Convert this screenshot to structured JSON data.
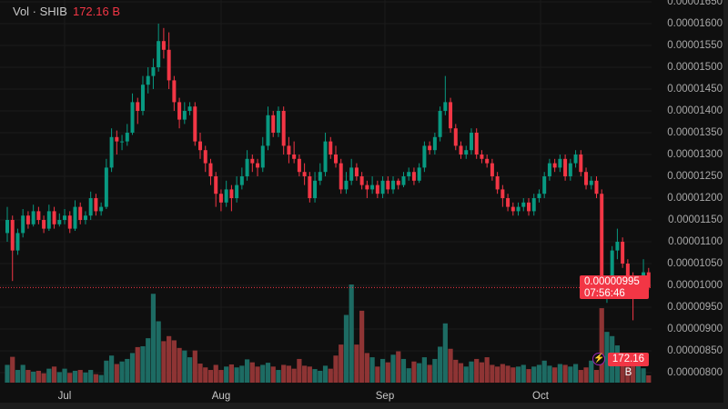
{
  "legend": {
    "label": "Vol · SHIB",
    "value": "172.16 B"
  },
  "price_axis": [
    "0.00001650",
    "0.00001600",
    "0.00001550",
    "0.00001500",
    "0.00001450",
    "0.00001400",
    "0.00001350",
    "0.00001300",
    "0.00001250",
    "0.00001200",
    "0.00001150",
    "0.00001100",
    "0.00001050",
    "0.00001000",
    "0.00000950",
    "0.00000900",
    "0.00000850",
    "0.00000800"
  ],
  "time_axis": [
    "Jul",
    "Aug",
    "Sep",
    "Oct"
  ],
  "current_price": {
    "price": "0.00000995",
    "countdown": "07:56:46"
  },
  "current_volume": "172.16 B",
  "colors": {
    "up": "#089981",
    "down": "#f23645",
    "vol_up": "#1d6b63",
    "vol_down": "#8e3434",
    "background": "#0f0f0f"
  },
  "icons": {
    "volume_tag": "lightning-icon"
  },
  "chart_data": {
    "type": "candlestick",
    "symbol": "SHIB",
    "volume_unit": "B",
    "price_range": [
      8e-06,
      1.65e-05
    ],
    "x_ticks": [
      "Jul",
      "Aug",
      "Sep",
      "Oct"
    ],
    "columns": [
      "open",
      "high",
      "low",
      "close",
      "volume"
    ],
    "candles": [
      [
        1.12e-05,
        1.18e-05,
        1.1e-05,
        1.15e-05,
        420
      ],
      [
        1.15e-05,
        1.16e-05,
        1.01e-05,
        1.08e-05,
        610
      ],
      [
        1.08e-05,
        1.13e-05,
        1.07e-05,
        1.12e-05,
        300
      ],
      [
        1.12e-05,
        1.175e-05,
        1.11e-05,
        1.16e-05,
        420
      ],
      [
        1.16e-05,
        1.17e-05,
        1.13e-05,
        1.14e-05,
        300
      ],
      [
        1.14e-05,
        1.185e-05,
        1.135e-05,
        1.17e-05,
        260
      ],
      [
        1.17e-05,
        1.18e-05,
        1.14e-05,
        1.15e-05,
        280
      ],
      [
        1.15e-05,
        1.16e-05,
        1.12e-05,
        1.13e-05,
        220
      ],
      [
        1.13e-05,
        1.185e-05,
        1.125e-05,
        1.17e-05,
        330
      ],
      [
        1.17e-05,
        1.18e-05,
        1.13e-05,
        1.14e-05,
        380
      ],
      [
        1.14e-05,
        1.165e-05,
        1.135e-05,
        1.15e-05,
        250
      ],
      [
        1.15e-05,
        1.175e-05,
        1.14e-05,
        1.16e-05,
        330
      ],
      [
        1.16e-05,
        1.17e-05,
        1.12e-05,
        1.13e-05,
        230
      ],
      [
        1.13e-05,
        1.195e-05,
        1.125e-05,
        1.18e-05,
        280
      ],
      [
        1.18e-05,
        1.19e-05,
        1.14e-05,
        1.15e-05,
        300
      ],
      [
        1.15e-05,
        1.17e-05,
        1.14e-05,
        1.16e-05,
        240
      ],
      [
        1.16e-05,
        1.215e-05,
        1.15e-05,
        1.2e-05,
        300
      ],
      [
        1.2e-05,
        1.21e-05,
        1.16e-05,
        1.17e-05,
        200
      ],
      [
        1.17e-05,
        1.19e-05,
        1.16e-05,
        1.18e-05,
        180
      ],
      [
        1.18e-05,
        1.29e-05,
        1.175e-05,
        1.27e-05,
        520
      ],
      [
        1.27e-05,
        1.36e-05,
        1.26e-05,
        1.34e-05,
        640
      ],
      [
        1.34e-05,
        1.355e-05,
        1.3e-05,
        1.33e-05,
        440
      ],
      [
        1.33e-05,
        1.345e-05,
        1.31e-05,
        1.33e-05,
        500
      ],
      [
        1.33e-05,
        1.37e-05,
        1.32e-05,
        1.35e-05,
        560
      ],
      [
        1.35e-05,
        1.44e-05,
        1.345e-05,
        1.42e-05,
        700
      ],
      [
        1.42e-05,
        1.43e-05,
        1.37e-05,
        1.4e-05,
        840
      ],
      [
        1.4e-05,
        1.48e-05,
        1.39e-05,
        1.46e-05,
        860
      ],
      [
        1.46e-05,
        1.5e-05,
        1.44e-05,
        1.48e-05,
        1050
      ],
      [
        1.48e-05,
        1.52e-05,
        1.45e-05,
        1.5e-05,
        2100
      ],
      [
        1.5e-05,
        1.6e-05,
        1.49e-05,
        1.56e-05,
        1450
      ],
      [
        1.56e-05,
        1.59e-05,
        1.52e-05,
        1.54e-05,
        980
      ],
      [
        1.54e-05,
        1.58e-05,
        1.45e-05,
        1.47e-05,
        1100
      ],
      [
        1.47e-05,
        1.48e-05,
        1.4e-05,
        1.42e-05,
        1000
      ],
      [
        1.42e-05,
        1.43e-05,
        1.36e-05,
        1.38e-05,
        820
      ],
      [
        1.38e-05,
        1.42e-05,
        1.37e-05,
        1.4e-05,
        760
      ],
      [
        1.4e-05,
        1.42e-05,
        1.39e-05,
        1.41e-05,
        600
      ],
      [
        1.41e-05,
        1.42e-05,
        1.32e-05,
        1.33e-05,
        760
      ],
      [
        1.33e-05,
        1.35e-05,
        1.29e-05,
        1.31e-05,
        450
      ],
      [
        1.31e-05,
        1.32e-05,
        1.26e-05,
        1.28e-05,
        360
      ],
      [
        1.28e-05,
        1.29e-05,
        1.23e-05,
        1.25e-05,
        300
      ],
      [
        1.25e-05,
        1.26e-05,
        1.18e-05,
        1.21e-05,
        420
      ],
      [
        1.21e-05,
        1.22e-05,
        1.17e-05,
        1.19e-05,
        300
      ],
      [
        1.19e-05,
        1.24e-05,
        1.18e-05,
        1.22e-05,
        380
      ],
      [
        1.22e-05,
        1.23e-05,
        1.17e-05,
        1.2e-05,
        430
      ],
      [
        1.2e-05,
        1.25e-05,
        1.19e-05,
        1.23e-05,
        360
      ],
      [
        1.23e-05,
        1.27e-05,
        1.22e-05,
        1.25e-05,
        400
      ],
      [
        1.25e-05,
        1.31e-05,
        1.24e-05,
        1.29e-05,
        550
      ],
      [
        1.29e-05,
        1.3e-05,
        1.26e-05,
        1.28e-05,
        480
      ],
      [
        1.28e-05,
        1.29e-05,
        1.25e-05,
        1.27e-05,
        380
      ],
      [
        1.27e-05,
        1.34e-05,
        1.26e-05,
        1.32e-05,
        420
      ],
      [
        1.32e-05,
        1.41e-05,
        1.31e-05,
        1.39e-05,
        470
      ],
      [
        1.39e-05,
        1.4e-05,
        1.34e-05,
        1.35e-05,
        380
      ],
      [
        1.35e-05,
        1.41e-05,
        1.34e-05,
        1.4e-05,
        300
      ],
      [
        1.4e-05,
        1.41e-05,
        1.3e-05,
        1.32e-05,
        420
      ],
      [
        1.32e-05,
        1.34e-05,
        1.28e-05,
        1.3e-05,
        400
      ],
      [
        1.3e-05,
        1.33e-05,
        1.28e-05,
        1.29e-05,
        330
      ],
      [
        1.29e-05,
        1.3e-05,
        1.25e-05,
        1.26e-05,
        560
      ],
      [
        1.26e-05,
        1.28e-05,
        1.23e-05,
        1.25e-05,
        400
      ],
      [
        1.25e-05,
        1.26e-05,
        1.19e-05,
        1.2e-05,
        380
      ],
      [
        1.2e-05,
        1.26e-05,
        1.19e-05,
        1.24e-05,
        320
      ],
      [
        1.24e-05,
        1.28e-05,
        1.23e-05,
        1.26e-05,
        280
      ],
      [
        1.26e-05,
        1.35e-05,
        1.25e-05,
        1.33e-05,
        400
      ],
      [
        1.33e-05,
        1.34e-05,
        1.29e-05,
        1.3e-05,
        330
      ],
      [
        1.3e-05,
        1.32e-05,
        1.27e-05,
        1.28e-05,
        640
      ],
      [
        1.28e-05,
        1.29e-05,
        1.21e-05,
        1.22e-05,
        900
      ],
      [
        1.22e-05,
        1.26e-05,
        1.21e-05,
        1.24e-05,
        1600
      ],
      [
        1.24e-05,
        1.29e-05,
        1.23e-05,
        1.27e-05,
        2320
      ],
      [
        1.27e-05,
        1.28e-05,
        1.24e-05,
        1.25e-05,
        900
      ],
      [
        1.25e-05,
        1.26e-05,
        1.22e-05,
        1.23e-05,
        1700
      ],
      [
        1.23e-05,
        1.24e-05,
        1.2e-05,
        1.22e-05,
        700
      ],
      [
        1.22e-05,
        1.25e-05,
        1.21e-05,
        1.23e-05,
        600
      ],
      [
        1.23e-05,
        1.24e-05,
        1.2e-05,
        1.21e-05,
        380
      ],
      [
        1.21e-05,
        1.25e-05,
        1.2e-05,
        1.24e-05,
        560
      ],
      [
        1.24e-05,
        1.25e-05,
        1.21e-05,
        1.22e-05,
        480
      ],
      [
        1.22e-05,
        1.25e-05,
        1.21e-05,
        1.24e-05,
        660
      ],
      [
        1.24e-05,
        1.245e-05,
        1.22e-05,
        1.23e-05,
        740
      ],
      [
        1.23e-05,
        1.26e-05,
        1.225e-05,
        1.25e-05,
        560
      ],
      [
        1.25e-05,
        1.27e-05,
        1.24e-05,
        1.26e-05,
        340
      ],
      [
        1.26e-05,
        1.27e-05,
        1.23e-05,
        1.24e-05,
        500
      ],
      [
        1.24e-05,
        1.28e-05,
        1.235e-05,
        1.27e-05,
        460
      ],
      [
        1.27e-05,
        1.33e-05,
        1.26e-05,
        1.32e-05,
        600
      ],
      [
        1.32e-05,
        1.33e-05,
        1.3e-05,
        1.31e-05,
        420
      ],
      [
        1.31e-05,
        1.35e-05,
        1.3e-05,
        1.34e-05,
        560
      ],
      [
        1.34e-05,
        1.41e-05,
        1.33e-05,
        1.4e-05,
        850
      ],
      [
        1.4e-05,
        1.48e-05,
        1.39e-05,
        1.42e-05,
        1400
      ],
      [
        1.42e-05,
        1.43e-05,
        1.35e-05,
        1.36e-05,
        800
      ],
      [
        1.36e-05,
        1.37e-05,
        1.31e-05,
        1.32e-05,
        540
      ],
      [
        1.32e-05,
        1.33e-05,
        1.29e-05,
        1.3e-05,
        460
      ],
      [
        1.3e-05,
        1.32e-05,
        1.29e-05,
        1.31e-05,
        380
      ],
      [
        1.31e-05,
        1.36e-05,
        1.3e-05,
        1.35e-05,
        500
      ],
      [
        1.35e-05,
        1.36e-05,
        1.29e-05,
        1.3e-05,
        560
      ],
      [
        1.3e-05,
        1.31e-05,
        1.28e-05,
        1.29e-05,
        480
      ],
      [
        1.29e-05,
        1.3e-05,
        1.27e-05,
        1.28e-05,
        600
      ],
      [
        1.28e-05,
        1.29e-05,
        1.24e-05,
        1.25e-05,
        420
      ],
      [
        1.25e-05,
        1.26e-05,
        1.21e-05,
        1.22e-05,
        380
      ],
      [
        1.22e-05,
        1.23e-05,
        1.18e-05,
        1.2e-05,
        440
      ],
      [
        1.2e-05,
        1.21e-05,
        1.17e-05,
        1.18e-05,
        400
      ],
      [
        1.18e-05,
        1.19e-05,
        1.16e-05,
        1.17e-05,
        360
      ],
      [
        1.17e-05,
        1.19e-05,
        1.16e-05,
        1.18e-05,
        380
      ],
      [
        1.18e-05,
        1.2e-05,
        1.17e-05,
        1.19e-05,
        420
      ],
      [
        1.19e-05,
        1.2e-05,
        1.16e-05,
        1.17e-05,
        320
      ],
      [
        1.17e-05,
        1.21e-05,
        1.16e-05,
        1.2e-05,
        380
      ],
      [
        1.2e-05,
        1.22e-05,
        1.19e-05,
        1.21e-05,
        420
      ],
      [
        1.21e-05,
        1.26e-05,
        1.2e-05,
        1.25e-05,
        520
      ],
      [
        1.25e-05,
        1.29e-05,
        1.24e-05,
        1.28e-05,
        400
      ],
      [
        1.28e-05,
        1.29e-05,
        1.26e-05,
        1.27e-05,
        360
      ],
      [
        1.27e-05,
        1.3e-05,
        1.26e-05,
        1.29e-05,
        440
      ],
      [
        1.29e-05,
        1.3e-05,
        1.24e-05,
        1.25e-05,
        420
      ],
      [
        1.25e-05,
        1.29e-05,
        1.24e-05,
        1.28e-05,
        380
      ],
      [
        1.28e-05,
        1.31e-05,
        1.27e-05,
        1.3e-05,
        440
      ],
      [
        1.3e-05,
        1.31e-05,
        1.25e-05,
        1.26e-05,
        300
      ],
      [
        1.26e-05,
        1.27e-05,
        1.22e-05,
        1.23e-05,
        360
      ],
      [
        1.23e-05,
        1.25e-05,
        1.22e-05,
        1.24e-05,
        520
      ],
      [
        1.24e-05,
        1.25e-05,
        1.2e-05,
        1.21e-05,
        300
      ],
      [
        1.21e-05,
        1.22e-05,
        9.7e-06,
        9.9e-06,
        1760
      ],
      [
        9.9e-06,
        1.02e-05,
        9.6e-06,
        1e-05,
        1200
      ],
      [
        1e-05,
        1.09e-05,
        9.9e-06,
        1.08e-05,
        1100
      ],
      [
        1.08e-05,
        1.13e-05,
        1.06e-05,
        1.1e-05,
        880
      ],
      [
        1.1e-05,
        1.11e-05,
        1.04e-05,
        1.05e-05,
        500
      ],
      [
        1.05e-05,
        1.06e-05,
        1.01e-05,
        1.02e-05,
        520
      ],
      [
        1.02e-05,
        1.03e-05,
        9.2e-06,
        9.9e-06,
        560
      ],
      [
        9.9e-06,
        1.02e-05,
        9.8e-06,
        1.01e-05,
        580
      ],
      [
        1.01e-05,
        1.06e-05,
        1e-05,
        1.03e-05,
        340
      ],
      [
        1.03e-05,
        1.04e-05,
        9.9e-06,
        9.95e-06,
        172.16
      ]
    ]
  }
}
